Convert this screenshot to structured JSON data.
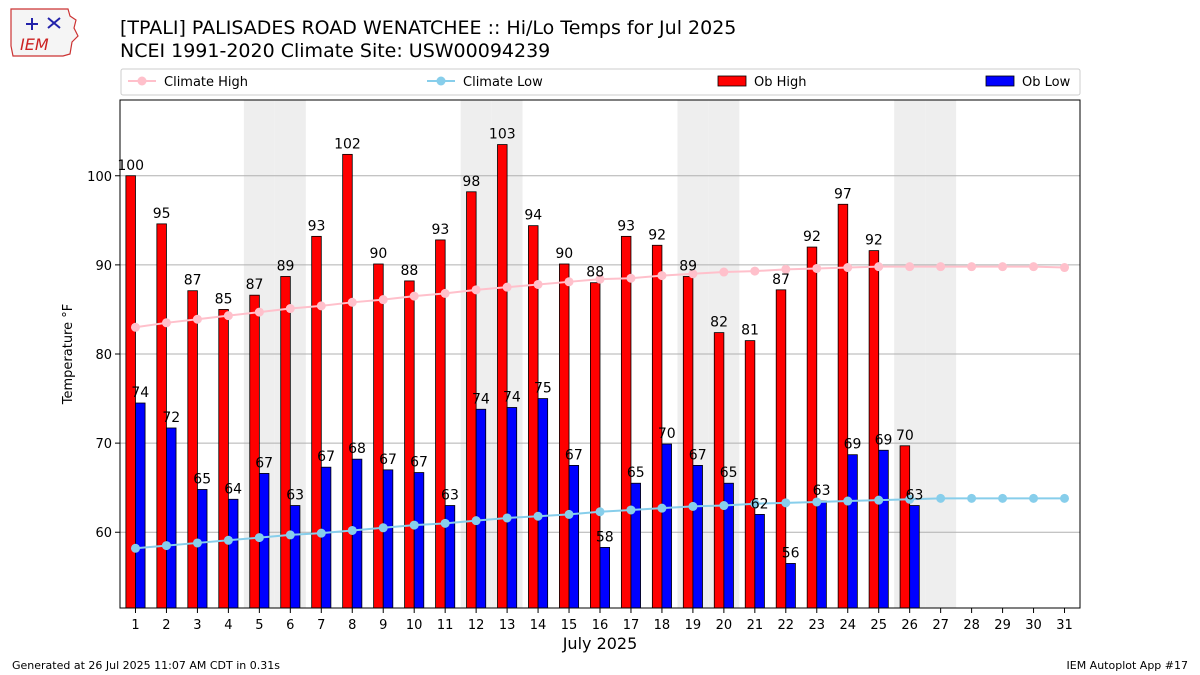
{
  "header": {
    "title_line1": "[TPALI] PALISADES ROAD WENATCHEE  :: Hi/Lo Temps for Jul 2025",
    "title_line2": "NCEI 1991-2020 Climate Site: USW00094239",
    "logo_text": "IEM"
  },
  "footer": {
    "left": "Generated at 26 Jul 2025 11:07 AM CDT in 0.31s",
    "right": "IEM Autoplot App #17"
  },
  "colors": {
    "ob_high": "#ff0000",
    "ob_low": "#0000ff",
    "climate_high": "#ffc0cb",
    "climate_low": "#87ceeb",
    "weekend_shade": "#eeeeee",
    "grid": "#b0b0b0"
  },
  "chart_data": {
    "type": "bar",
    "xlabel": "July 2025",
    "ylabel": "Temperature °F",
    "ylim": [
      51.5,
      108.5
    ],
    "yticks": [
      60,
      70,
      80,
      90,
      100
    ],
    "grid": "horizontal",
    "legend_position": "top",
    "categories": [
      "1",
      "2",
      "3",
      "4",
      "5",
      "6",
      "7",
      "8",
      "9",
      "10",
      "11",
      "12",
      "13",
      "14",
      "15",
      "16",
      "17",
      "18",
      "19",
      "20",
      "21",
      "22",
      "23",
      "24",
      "25",
      "26",
      "27",
      "28",
      "29",
      "30",
      "31"
    ],
    "shaded_days": [
      5,
      6,
      12,
      13,
      19,
      20,
      26,
      27
    ],
    "series": [
      {
        "name": "Climate High",
        "kind": "line",
        "values": [
          83.0,
          83.5,
          83.9,
          84.3,
          84.7,
          85.1,
          85.4,
          85.8,
          86.1,
          86.5,
          86.8,
          87.2,
          87.5,
          87.8,
          88.1,
          88.4,
          88.5,
          88.8,
          89.0,
          89.2,
          89.3,
          89.5,
          89.6,
          89.7,
          89.8,
          89.8,
          89.8,
          89.8,
          89.8,
          89.8,
          89.7
        ]
      },
      {
        "name": "Climate Low",
        "kind": "line",
        "values": [
          58.2,
          58.5,
          58.8,
          59.1,
          59.4,
          59.7,
          59.9,
          60.2,
          60.5,
          60.8,
          61.0,
          61.3,
          61.6,
          61.8,
          62.0,
          62.3,
          62.5,
          62.7,
          62.9,
          63.0,
          63.2,
          63.3,
          63.4,
          63.5,
          63.6,
          63.7,
          63.8,
          63.8,
          63.8,
          63.8,
          63.8
        ]
      },
      {
        "name": "Ob High",
        "kind": "bar",
        "values": [
          100,
          95,
          87,
          85,
          87,
          89,
          93,
          102,
          90,
          88,
          93,
          98,
          103,
          94,
          90,
          88,
          93,
          92,
          89,
          82,
          81,
          87,
          92,
          97,
          92,
          70,
          null,
          null,
          null,
          null,
          null
        ]
      },
      {
        "name": "Ob Low",
        "kind": "bar",
        "values": [
          74,
          72,
          65,
          64,
          67,
          63,
          67,
          68,
          67,
          67,
          63,
          74,
          74,
          75,
          67,
          58,
          65,
          70,
          67,
          65,
          62,
          56,
          63,
          69,
          69,
          63,
          null,
          null,
          null,
          null,
          null
        ]
      }
    ],
    "bar_plot_values": {
      "Ob High": [
        100,
        94.6,
        87.1,
        85.0,
        86.6,
        88.7,
        93.2,
        102.4,
        90.1,
        88.2,
        92.8,
        98.2,
        103.5,
        94.4,
        90.1,
        88.0,
        93.2,
        92.2,
        88.7,
        82.4,
        81.5,
        87.2,
        92.0,
        96.8,
        91.6,
        69.7,
        null,
        null,
        null,
        null,
        null
      ],
      "Ob Low": [
        74.5,
        71.7,
        64.8,
        63.7,
        66.6,
        63.0,
        67.3,
        68.2,
        67.0,
        66.7,
        63.0,
        73.8,
        74.0,
        75.0,
        67.5,
        58.3,
        65.5,
        69.9,
        67.5,
        65.5,
        62.0,
        56.5,
        63.5,
        68.7,
        69.2,
        63.0,
        null,
        null,
        null,
        null,
        null
      ]
    }
  }
}
